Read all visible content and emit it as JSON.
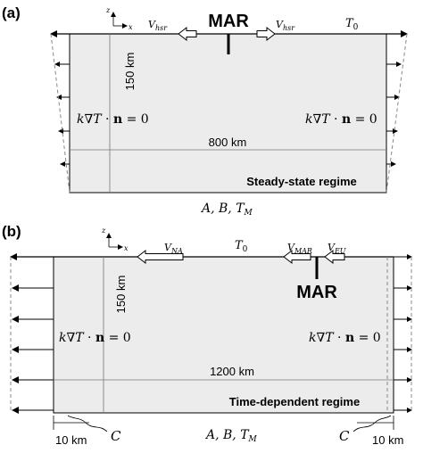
{
  "panel_a": {
    "label": "(a)",
    "ridge_label": "MAR",
    "velocity_left": "V_hsr",
    "velocity_right": "V_hsr",
    "surface_temperature": "T_0",
    "depth_label": "150 km",
    "width_label": "800 km",
    "bc_left": "k∇T · n = 0",
    "bc_right": "k∇T · n = 0",
    "regime": "Steady-state regime",
    "bottom_params": "A, B, T_M",
    "axis_z": "z",
    "axis_x": "x"
  },
  "panel_b": {
    "label": "(b)",
    "ridge_label": "MAR",
    "velocity_na": "V_NA",
    "surface_temperature": "T_0",
    "velocity_mar": "V_MAR",
    "velocity_eu": "V_EU",
    "depth_label": "150 km",
    "width_label": "1200 km",
    "bc_left": "k∇T · n = 0",
    "bc_right": "k∇T · n = 0",
    "regime": "Time-dependent regime",
    "bottom_params": "A, B, T_M",
    "left_strip_width": "10 km",
    "right_strip_width": "10 km",
    "corner_left": "C",
    "corner_right": "C",
    "axis_z": "z",
    "axis_x": "x"
  },
  "colors": {
    "box_fill": "#ececec",
    "line": "#000000",
    "dashed": "#888888"
  }
}
